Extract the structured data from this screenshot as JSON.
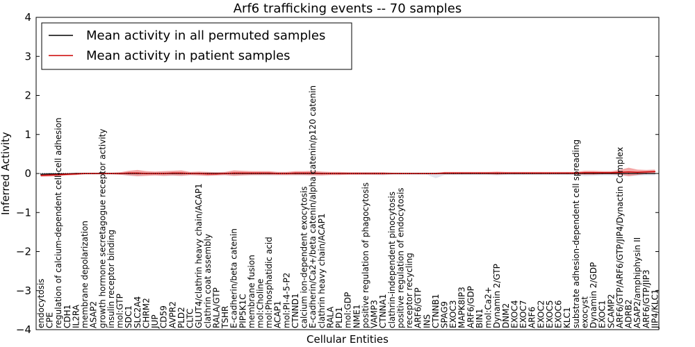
{
  "chart_data": {
    "type": "line",
    "title": "Arf6 trafficking events -- 70 samples",
    "xlabel": "Cellular Entities",
    "ylabel": "Inferred Activity",
    "ylim": [
      -4,
      4
    ],
    "yticks": [
      -4,
      -3,
      -2,
      -1,
      0,
      1,
      2,
      3,
      4
    ],
    "grid": false,
    "legend_position": "top-left",
    "categories": [
      "endocytosis",
      "CPE",
      "regulation of calcium-dependent cell-cell adhesion",
      "CDH1",
      "IL2RA",
      "membrane depolarization",
      "ASAP2",
      "growth hormone secretagogue receptor activity",
      "insulin receptor binding",
      "mol:GTP",
      "SDC1",
      "SLC2A4",
      "CHRM2",
      "JUP",
      "CD59",
      "AVPR2",
      "PLD2",
      "CLTC",
      "GLUT4/clathrin heavy chain/ACAP1",
      "clathrin coat assembly",
      "RALA/GTP",
      "TSHR",
      "E-cadherin/beta catenin",
      "PIP5K1C",
      "membrane fusion",
      "mol:Choline",
      "mol:Phosphatidic acid",
      "ACAP1",
      "mol:PI-4-5-P2",
      "CTNND1",
      "calcium ion-dependent exocytosis",
      "E-cadherin/Ca2+/beta catenin/alpha catenin/p120 catenin",
      "clathrin heavy chain/ACAP1",
      "RALA",
      "PLD1",
      "mol:GDP",
      "NME1",
      "positive regulation of phagocytosis",
      "VAMP3",
      "CTNNA1",
      "clathrin-independent pinocytosis",
      "positive regulation of endocytosis",
      "receptor recycling",
      "ARF6/GTP",
      "INS",
      "CTNNB1",
      "SPAG9",
      "EXOC3",
      "MAPK8IP3",
      "ARF6/GDP",
      "BIN1",
      "mol:Ca2+",
      "Dynamin 2/GTP",
      "DNM2",
      "EXOC4",
      "EXOC7",
      "ARF6",
      "EXOC2",
      "EXOC5",
      "EXOC6",
      "KLC1",
      "substrate adhesion-dependent cell spreading",
      "exocyst",
      "Dynamin 2/GDP",
      "EXOC1",
      "SCAMP2",
      "ARF6/GTP/ARF6/GTP/JIP4/Dynactin Complex",
      "ADRB2",
      "ASAP2/amphiphysin II",
      "ARF6/GTP/JIP3",
      "JIP4/KLC1"
    ],
    "series": [
      {
        "name": "Mean activity in all permuted samples",
        "color": "#000000",
        "values": [
          -0.02,
          -0.01,
          -0.01,
          -0.01,
          0.0,
          0.0,
          0.0,
          0.0,
          0.0,
          0.0,
          0.0,
          0.0,
          0.0,
          0.0,
          0.0,
          0.0,
          0.0,
          0.0,
          0.0,
          0.0,
          0.0,
          0.0,
          0.0,
          0.0,
          0.0,
          0.0,
          0.0,
          0.0,
          0.0,
          0.0,
          0.0,
          0.0,
          0.0,
          0.0,
          0.0,
          0.0,
          0.0,
          0.0,
          0.0,
          0.0,
          0.0,
          0.0,
          0.0,
          0.0,
          0.0,
          0.0,
          0.0,
          0.0,
          0.0,
          0.0,
          0.0,
          0.0,
          0.0,
          0.0,
          0.0,
          0.0,
          0.0,
          0.0,
          0.0,
          0.0,
          0.0,
          0.0,
          0.0,
          0.0,
          0.0,
          0.0,
          0.0,
          0.0,
          0.0,
          0.0,
          0.0
        ]
      },
      {
        "name": "Mean activity in patient samples",
        "color": "#cc0000",
        "band_color": "#f08080",
        "values": [
          -0.05,
          -0.04,
          -0.03,
          -0.02,
          -0.01,
          0.0,
          0.0,
          0.0,
          0.0,
          0.0,
          0.01,
          0.01,
          0.0,
          0.0,
          0.0,
          0.01,
          0.01,
          0.0,
          0.0,
          -0.01,
          -0.01,
          0.0,
          0.01,
          0.01,
          0.01,
          0.01,
          0.01,
          0.0,
          0.0,
          0.01,
          0.01,
          0.01,
          0.0,
          0.0,
          0.0,
          0.0,
          0.0,
          0.0,
          0.0,
          0.0,
          0.0,
          0.0,
          0.0,
          0.0,
          0.0,
          0.0,
          0.01,
          0.01,
          0.01,
          0.01,
          0.01,
          0.01,
          0.01,
          0.01,
          0.01,
          0.01,
          0.01,
          0.01,
          0.01,
          0.01,
          0.01,
          0.01,
          0.02,
          0.02,
          0.02,
          0.02,
          0.03,
          0.04,
          0.03,
          0.04,
          0.05
        ],
        "band": [
          0.03,
          0.04,
          0.04,
          0.03,
          0.03,
          0.02,
          0.02,
          0.02,
          0.02,
          0.03,
          0.06,
          0.08,
          0.06,
          0.05,
          0.06,
          0.06,
          0.07,
          0.04,
          0.05,
          0.05,
          0.04,
          0.04,
          0.07,
          0.06,
          0.05,
          0.05,
          0.05,
          0.04,
          0.04,
          0.05,
          0.05,
          0.06,
          0.05,
          0.04,
          0.04,
          0.03,
          0.03,
          0.03,
          0.03,
          0.03,
          0.02,
          0.02,
          0.02,
          0.02,
          0.02,
          0.02,
          0.03,
          0.03,
          0.03,
          0.03,
          0.03,
          0.03,
          0.04,
          0.03,
          0.03,
          0.03,
          0.03,
          0.03,
          0.03,
          0.03,
          0.03,
          0.03,
          0.05,
          0.05,
          0.04,
          0.04,
          0.06,
          0.11,
          0.07,
          0.05,
          0.05
        ]
      }
    ],
    "permuted_band": {
      "color": "#c8cfe0",
      "low": [
        -0.06,
        -0.05,
        -0.05,
        -0.04,
        -0.03,
        -0.02,
        -0.02,
        -0.02,
        -0.02,
        -0.03,
        -0.06,
        -0.07,
        -0.05,
        -0.05,
        -0.06,
        -0.06,
        -0.06,
        -0.05,
        -0.05,
        -0.06,
        -0.05,
        -0.05,
        -0.06,
        -0.05,
        -0.05,
        -0.05,
        -0.05,
        -0.05,
        -0.05,
        -0.05,
        -0.05,
        -0.05,
        -0.05,
        -0.04,
        -0.04,
        -0.03,
        -0.03,
        -0.03,
        -0.04,
        -0.05,
        -0.03,
        -0.03,
        -0.03,
        -0.03,
        -0.03,
        -0.12,
        -0.04,
        -0.04,
        -0.04,
        -0.04,
        -0.04,
        -0.04,
        -0.05,
        -0.04,
        -0.04,
        -0.04,
        -0.04,
        -0.04,
        -0.04,
        -0.04,
        -0.04,
        -0.04,
        -0.07,
        -0.06,
        -0.05,
        -0.05,
        -0.06,
        -0.07,
        -0.06,
        -0.05,
        -0.05
      ],
      "high": [
        0.02,
        0.02,
        0.02,
        0.02,
        0.02,
        0.02,
        0.02,
        0.02,
        0.02,
        0.02,
        0.04,
        0.04,
        0.04,
        0.04,
        0.04,
        0.04,
        0.04,
        0.04,
        0.04,
        0.04,
        0.04,
        0.04,
        0.04,
        0.04,
        0.04,
        0.04,
        0.04,
        0.04,
        0.04,
        0.04,
        0.04,
        0.04,
        0.04,
        0.03,
        0.03,
        0.03,
        0.03,
        0.03,
        0.03,
        0.03,
        0.02,
        0.02,
        0.02,
        0.02,
        0.02,
        0.02,
        0.03,
        0.03,
        0.03,
        0.03,
        0.03,
        0.03,
        0.03,
        0.03,
        0.03,
        0.03,
        0.03,
        0.03,
        0.03,
        0.03,
        0.03,
        0.03,
        0.04,
        0.04,
        0.04,
        0.04,
        0.04,
        0.05,
        0.04,
        0.04,
        0.04
      ]
    }
  }
}
